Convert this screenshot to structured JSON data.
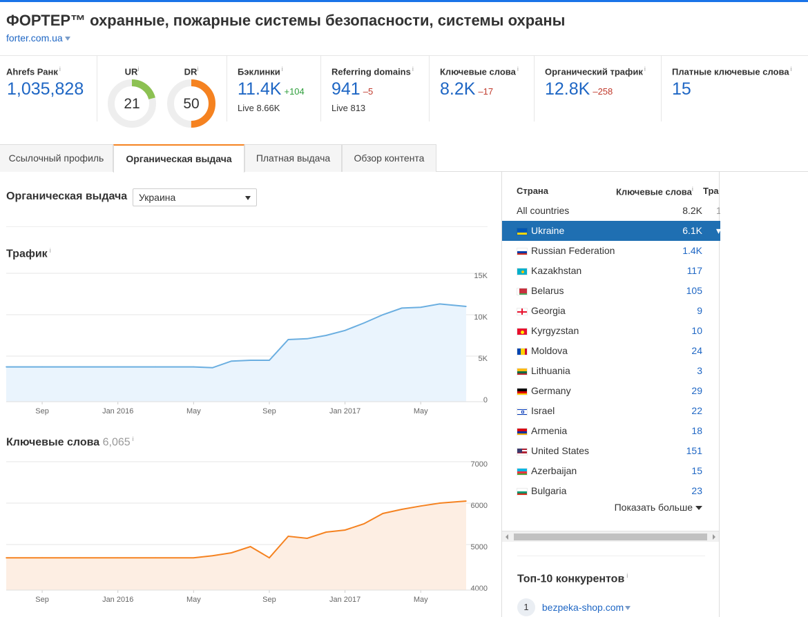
{
  "header": {
    "title": "ФОРТЕР™ охранные, пожарные системы безопасности, системы охраны",
    "url": "forter.com.ua"
  },
  "metrics": {
    "ahrefs_rank": {
      "label": "Ahrefs Ранк",
      "value": "1,035,828"
    },
    "ur": {
      "label": "UR",
      "value": "21",
      "score": 21,
      "color": "#8cc152"
    },
    "dr": {
      "label": "DR",
      "value": "50",
      "score": 50,
      "color": "#f58220"
    },
    "backlinks": {
      "label": "Бэклинки",
      "value": "11.4K",
      "delta": "+104",
      "sub": "Live 8.66K"
    },
    "ref_domains": {
      "label": "Referring domains",
      "value": "941",
      "delta": "–5",
      "sub": "Live 813"
    },
    "keywords": {
      "label": "Ключевые слова",
      "value": "8.2K",
      "delta": "–17"
    },
    "organic_traffic": {
      "label": "Органический трафик",
      "value": "12.8K",
      "delta": "–258"
    },
    "paid_keywords": {
      "label": "Платные ключевые слова",
      "value": "15"
    }
  },
  "tabs": [
    "Ссылочный профиль",
    "Органическая выдача",
    "Платная выдача",
    "Обзор контента"
  ],
  "organic": {
    "heading": "Органическая выдача",
    "country_select": "Украина",
    "traffic_title": "Трафик",
    "keywords_title": "Ключевые слова",
    "keywords_count": "6,065"
  },
  "country_table": {
    "headers": {
      "country": "Страна",
      "keywords": "Ключевые слова",
      "traffic": "Тра"
    },
    "all": {
      "name": "All countries",
      "value": "8.2K"
    },
    "rows": [
      {
        "name": "Ukraine",
        "value": "6.1K",
        "flag": "ua"
      },
      {
        "name": "Russian Federation",
        "value": "1.4K",
        "flag": "ru"
      },
      {
        "name": "Kazakhstan",
        "value": "117",
        "flag": "kz"
      },
      {
        "name": "Belarus",
        "value": "105",
        "flag": "by"
      },
      {
        "name": "Georgia",
        "value": "9",
        "flag": "ge"
      },
      {
        "name": "Kyrgyzstan",
        "value": "10",
        "flag": "kg"
      },
      {
        "name": "Moldova",
        "value": "24",
        "flag": "md"
      },
      {
        "name": "Lithuania",
        "value": "3",
        "flag": "lt"
      },
      {
        "name": "Germany",
        "value": "29",
        "flag": "de"
      },
      {
        "name": "Israel",
        "value": "22",
        "flag": "il"
      },
      {
        "name": "Armenia",
        "value": "18",
        "flag": "am"
      },
      {
        "name": "United States",
        "value": "151",
        "flag": "us"
      },
      {
        "name": "Azerbaijan",
        "value": "15",
        "flag": "az"
      },
      {
        "name": "Bulgaria",
        "value": "23",
        "flag": "bg"
      }
    ],
    "show_more": "Показать больше"
  },
  "competitors": {
    "title": "Топ-10 конкурентов",
    "items": [
      {
        "rank": "1",
        "domain": "bezpeka-shop.com"
      }
    ]
  },
  "chart_data": [
    {
      "type": "area",
      "title": "Трафик",
      "x_tick_labels": [
        "Sep",
        "Jan 2016",
        "May",
        "Sep",
        "Jan 2017",
        "May"
      ],
      "y_tick_labels": [
        "15K",
        "10K",
        "5K",
        "0"
      ],
      "ylim": [
        0,
        15000
      ],
      "color": "#6aaee0",
      "fill": "#eaf4fd",
      "x": [
        "2015-07",
        "2015-09",
        "2015-11",
        "2016-01",
        "2016-03",
        "2016-05",
        "2016-06",
        "2016-07",
        "2016-08",
        "2016-09",
        "2016-10",
        "2016-11",
        "2016-12",
        "2017-01",
        "2017-02",
        "2017-03",
        "2017-04",
        "2017-05",
        "2017-06",
        "2017-07"
      ],
      "values": [
        4200,
        4200,
        4200,
        4200,
        4200,
        4200,
        4100,
        4900,
        5000,
        5000,
        7500,
        7600,
        8000,
        8600,
        9500,
        10500,
        11300,
        11400,
        11800,
        11500
      ]
    },
    {
      "type": "area",
      "title": "Ключевые слова",
      "x_tick_labels": [
        "Sep",
        "Jan 2016",
        "May",
        "Sep",
        "Jan 2017",
        "May"
      ],
      "y_tick_labels": [
        "7000",
        "6000",
        "5000",
        "4000"
      ],
      "ylim": [
        4000,
        7000
      ],
      "color": "#f58220",
      "fill": "#fdeee3",
      "x": [
        "2015-07",
        "2015-09",
        "2015-11",
        "2016-01",
        "2016-03",
        "2016-05",
        "2016-06",
        "2016-07",
        "2016-08",
        "2016-09",
        "2016-10",
        "2016-11",
        "2016-12",
        "2017-01",
        "2017-02",
        "2017-03",
        "2017-04",
        "2017-05",
        "2017-06",
        "2017-07"
      ],
      "values": [
        4780,
        4780,
        4780,
        4780,
        4780,
        4780,
        4830,
        4900,
        5050,
        4780,
        5300,
        5250,
        5400,
        5450,
        5600,
        5850,
        5950,
        6030,
        6100,
        6150
      ]
    }
  ]
}
